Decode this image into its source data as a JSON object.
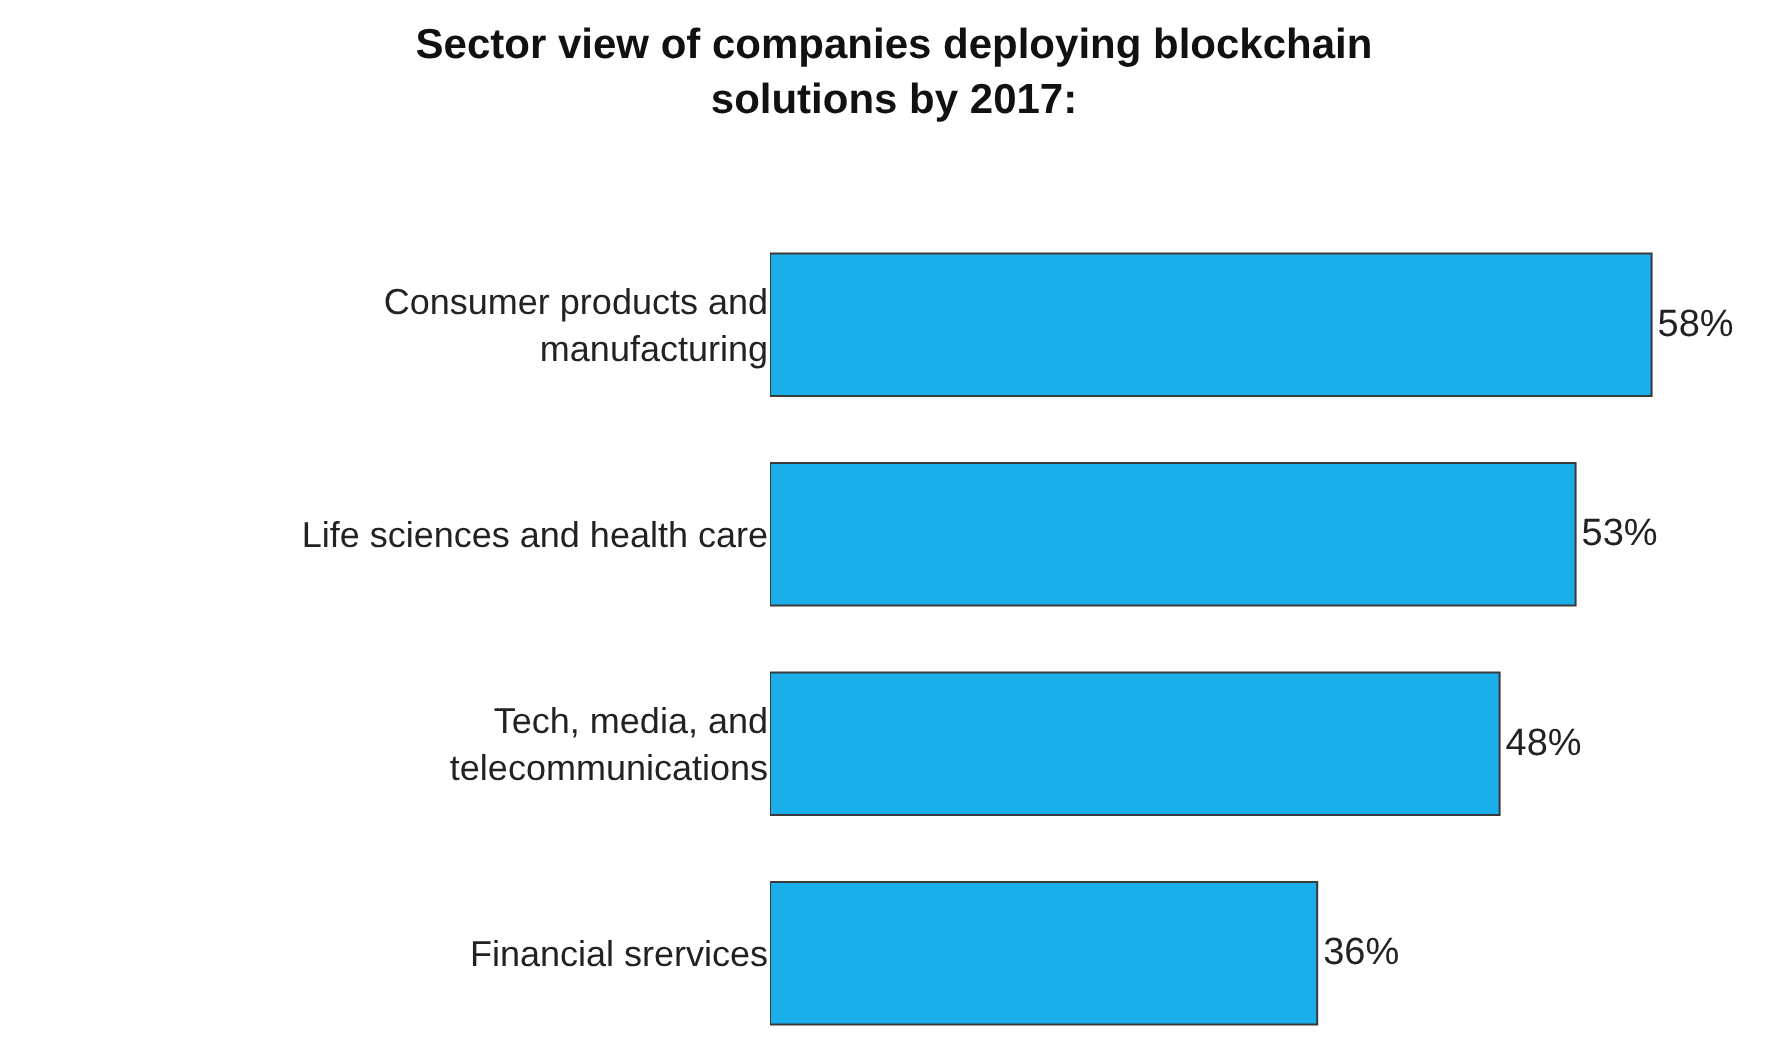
{
  "chart_data": {
    "type": "bar",
    "orientation": "horizontal",
    "title": "Sector view of companies deploying blockchain solutions by 2017:",
    "categories": [
      "Consumer products and manufacturing",
      "Life sciences and health care",
      "Tech, media, and telecommunications",
      "Financial srervices"
    ],
    "values": [
      58,
      53,
      48,
      36
    ],
    "value_labels": [
      "58%",
      "53%",
      "48%",
      "36%"
    ],
    "color": "#1aaeea",
    "tick_labels": "y",
    "grid": false
  }
}
